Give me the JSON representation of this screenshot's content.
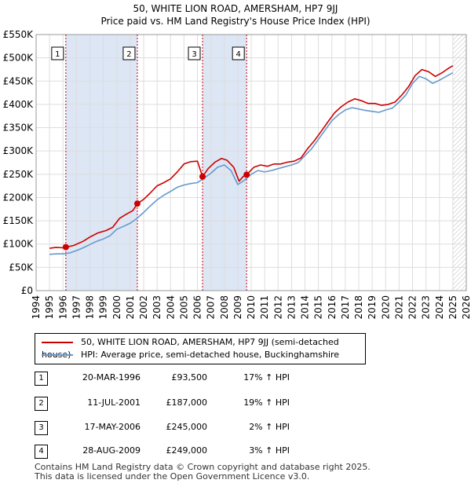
{
  "title_line1": "50, WHITE LION ROAD, AMERSHAM, HP7 9JJ",
  "title_line2": "Price paid vs. HM Land Registry's House Price Index (HPI)",
  "colors": {
    "red": "#cc0000",
    "blue": "#6699cc",
    "shade": "#dde6f5",
    "grid": "#dddddd"
  },
  "chart_data": {
    "type": "line",
    "xlim": [
      1994,
      2026
    ],
    "ylim": [
      0,
      550000
    ],
    "x_ticks": [
      1994,
      1995,
      1996,
      1997,
      1998,
      1999,
      2000,
      2001,
      2002,
      2003,
      2004,
      2005,
      2006,
      2007,
      2008,
      2009,
      2010,
      2011,
      2012,
      2013,
      2014,
      2015,
      2016,
      2017,
      2018,
      2019,
      2020,
      2021,
      2022,
      2023,
      2024,
      2025,
      2026
    ],
    "y_ticks": [
      0,
      50000,
      100000,
      150000,
      200000,
      250000,
      300000,
      350000,
      400000,
      450000,
      500000,
      550000
    ],
    "y_tick_labels": [
      "£0",
      "£50K",
      "£100K",
      "£150K",
      "£200K",
      "£250K",
      "£300K",
      "£350K",
      "£400K",
      "£450K",
      "£500K",
      "£550K"
    ],
    "shaded_ranges": [
      [
        1996.21,
        2001.53
      ],
      [
        2006.38,
        2009.66
      ]
    ],
    "data_end": 2025.0,
    "series": [
      {
        "name": "50, WHITE LION ROAD, AMERSHAM, HP7 9JJ (semi-detached house)",
        "color": "red",
        "points": [
          [
            1995.0,
            91000
          ],
          [
            1995.5,
            93000
          ],
          [
            1996.0,
            92000
          ],
          [
            1996.21,
            93500
          ],
          [
            1996.8,
            97000
          ],
          [
            1997.5,
            106000
          ],
          [
            1998.0,
            115000
          ],
          [
            1998.6,
            124000
          ],
          [
            1999.2,
            129000
          ],
          [
            1999.7,
            136000
          ],
          [
            2000.2,
            155000
          ],
          [
            2000.7,
            164000
          ],
          [
            2001.2,
            172000
          ],
          [
            2001.53,
            187000
          ],
          [
            2002.0,
            196000
          ],
          [
            2002.5,
            210000
          ],
          [
            2003.0,
            225000
          ],
          [
            2003.5,
            232000
          ],
          [
            2004.0,
            240000
          ],
          [
            2004.5,
            255000
          ],
          [
            2005.0,
            272000
          ],
          [
            2005.5,
            277000
          ],
          [
            2006.0,
            278000
          ],
          [
            2006.38,
            245000
          ],
          [
            2006.8,
            262000
          ],
          [
            2007.3,
            276000
          ],
          [
            2007.8,
            284000
          ],
          [
            2008.2,
            280000
          ],
          [
            2008.7,
            265000
          ],
          [
            2009.1,
            235000
          ],
          [
            2009.4,
            245000
          ],
          [
            2009.66,
            249000
          ],
          [
            2010.2,
            265000
          ],
          [
            2010.7,
            270000
          ],
          [
            2011.2,
            267000
          ],
          [
            2011.7,
            272000
          ],
          [
            2012.2,
            272000
          ],
          [
            2012.7,
            276000
          ],
          [
            2013.2,
            278000
          ],
          [
            2013.7,
            285000
          ],
          [
            2014.2,
            305000
          ],
          [
            2014.7,
            322000
          ],
          [
            2015.2,
            342000
          ],
          [
            2015.7,
            362000
          ],
          [
            2016.2,
            382000
          ],
          [
            2016.7,
            395000
          ],
          [
            2017.2,
            405000
          ],
          [
            2017.7,
            412000
          ],
          [
            2018.2,
            408000
          ],
          [
            2018.7,
            402000
          ],
          [
            2019.2,
            402000
          ],
          [
            2019.7,
            398000
          ],
          [
            2020.2,
            400000
          ],
          [
            2020.7,
            405000
          ],
          [
            2021.2,
            420000
          ],
          [
            2021.7,
            438000
          ],
          [
            2022.2,
            462000
          ],
          [
            2022.7,
            475000
          ],
          [
            2023.2,
            470000
          ],
          [
            2023.7,
            460000
          ],
          [
            2024.2,
            468000
          ],
          [
            2024.7,
            478000
          ],
          [
            2025.0,
            483000
          ]
        ]
      },
      {
        "name": "HPI: Average price, semi-detached house, Buckinghamshire",
        "color": "blue",
        "points": [
          [
            1995.0,
            78000
          ],
          [
            1995.5,
            79000
          ],
          [
            1996.0,
            79000
          ],
          [
            1996.5,
            81000
          ],
          [
            1997.0,
            86000
          ],
          [
            1997.5,
            92000
          ],
          [
            1998.0,
            99000
          ],
          [
            1998.5,
            106000
          ],
          [
            1999.0,
            111000
          ],
          [
            1999.5,
            118000
          ],
          [
            2000.0,
            132000
          ],
          [
            2000.5,
            138000
          ],
          [
            2001.0,
            145000
          ],
          [
            2001.5,
            155000
          ],
          [
            2002.0,
            168000
          ],
          [
            2002.5,
            182000
          ],
          [
            2003.0,
            195000
          ],
          [
            2003.5,
            205000
          ],
          [
            2004.0,
            213000
          ],
          [
            2004.5,
            222000
          ],
          [
            2005.0,
            227000
          ],
          [
            2005.5,
            230000
          ],
          [
            2006.0,
            232000
          ],
          [
            2006.5,
            242000
          ],
          [
            2007.0,
            252000
          ],
          [
            2007.5,
            265000
          ],
          [
            2008.0,
            270000
          ],
          [
            2008.5,
            258000
          ],
          [
            2009.0,
            228000
          ],
          [
            2009.5,
            237000
          ],
          [
            2010.0,
            250000
          ],
          [
            2010.5,
            258000
          ],
          [
            2011.0,
            255000
          ],
          [
            2011.5,
            258000
          ],
          [
            2012.0,
            262000
          ],
          [
            2012.5,
            266000
          ],
          [
            2013.0,
            270000
          ],
          [
            2013.5,
            275000
          ],
          [
            2014.0,
            290000
          ],
          [
            2014.5,
            305000
          ],
          [
            2015.0,
            325000
          ],
          [
            2015.5,
            345000
          ],
          [
            2016.0,
            365000
          ],
          [
            2016.5,
            378000
          ],
          [
            2017.0,
            388000
          ],
          [
            2017.5,
            393000
          ],
          [
            2018.0,
            390000
          ],
          [
            2018.5,
            387000
          ],
          [
            2019.0,
            385000
          ],
          [
            2019.5,
            383000
          ],
          [
            2020.0,
            388000
          ],
          [
            2020.5,
            392000
          ],
          [
            2021.0,
            405000
          ],
          [
            2021.5,
            420000
          ],
          [
            2022.0,
            445000
          ],
          [
            2022.5,
            460000
          ],
          [
            2023.0,
            455000
          ],
          [
            2023.5,
            445000
          ],
          [
            2024.0,
            452000
          ],
          [
            2024.5,
            460000
          ],
          [
            2025.0,
            468000
          ]
        ]
      }
    ],
    "sales": [
      {
        "label": "1",
        "x": 1996.21,
        "y": 93500
      },
      {
        "label": "2",
        "x": 2001.53,
        "y": 187000
      },
      {
        "label": "3",
        "x": 2006.38,
        "y": 245000
      },
      {
        "label": "4",
        "x": 2009.66,
        "y": 249000
      }
    ]
  },
  "legend": {
    "red_label": "50, WHITE LION ROAD, AMERSHAM, HP7 9JJ (semi-detached house)",
    "blue_label": "HPI: Average price, semi-detached house, Buckinghamshire"
  },
  "transactions": [
    {
      "num": "1",
      "date": "20-MAR-1996",
      "price": "£93,500",
      "hpi": "17% ↑ HPI"
    },
    {
      "num": "2",
      "date": "11-JUL-2001",
      "price": "£187,000",
      "hpi": "19% ↑ HPI"
    },
    {
      "num": "3",
      "date": "17-MAY-2006",
      "price": "£245,000",
      "hpi": "2% ↑ HPI"
    },
    {
      "num": "4",
      "date": "28-AUG-2009",
      "price": "£249,000",
      "hpi": "3% ↑ HPI"
    }
  ],
  "footer_line1": "Contains HM Land Registry data © Crown copyright and database right 2025.",
  "footer_line2": "This data is licensed under the Open Government Licence v3.0."
}
